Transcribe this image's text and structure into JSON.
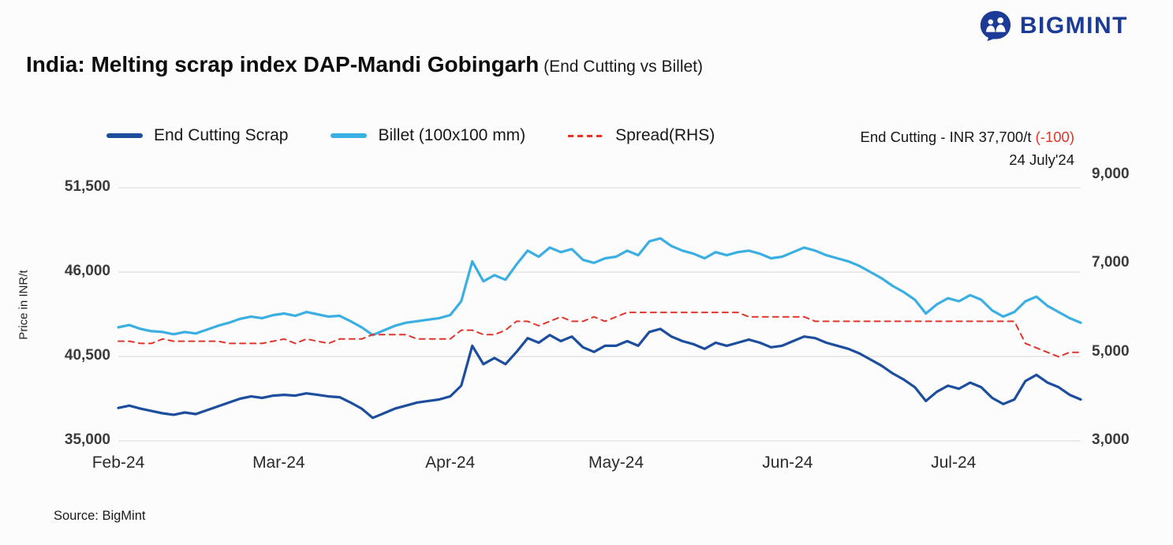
{
  "brand": {
    "name": "BIGMINT"
  },
  "title": {
    "main": "India: Melting scrap index DAP-Mandi Gobingarh",
    "suffix": " (End Cutting vs Billet)"
  },
  "annotation": {
    "prefix": "End Cutting - INR 37,700/t ",
    "change": "(-100)",
    "date": "24 July'24"
  },
  "source": "Source: BigMint",
  "colors": {
    "brand_navy": "#1b3b97",
    "end_cutting": "#1d4e9e",
    "billet": "#3bafe2",
    "spread_red": "#e0352b",
    "gridline": "#d9d9d9"
  },
  "chart_data": {
    "type": "line",
    "title": "India: Melting scrap index DAP-Mandi Gobingarh (End Cutting vs Billet)",
    "ylabel_left": "Price in INR/t",
    "legend_position": "top",
    "grid": "horizontal",
    "left_axis": {
      "min": 35000,
      "max": 51500,
      "tick_values": [
        51500,
        46000,
        40500,
        35000
      ],
      "tick_labels": [
        "51,500",
        "46,000",
        "40,500",
        "35,000"
      ]
    },
    "right_axis": {
      "min": 3000,
      "max": 9000,
      "tick_values": [
        9000,
        7000,
        5000,
        3000
      ],
      "tick_labels": [
        "9,000",
        "7,000",
        "5,000",
        "3,000"
      ]
    },
    "x_ticks": {
      "labels": [
        "Feb-24",
        "Mar-24",
        "Apr-24",
        "May-24",
        "Jun-24",
        "Jul-24"
      ],
      "day_positions": [
        0,
        29,
        60,
        90,
        121,
        151
      ],
      "total_days": 174
    },
    "sample_interval_days": 2,
    "series": [
      {
        "name": "End Cutting Scrap",
        "color": "#1d4e9e",
        "axis": "left",
        "style": "solid",
        "values": [
          37150,
          37300,
          37100,
          36950,
          36800,
          36700,
          36850,
          36750,
          37000,
          37250,
          37500,
          37750,
          37900,
          37800,
          37950,
          38000,
          37950,
          38100,
          38000,
          37900,
          37850,
          37500,
          37100,
          36500,
          36800,
          37100,
          37300,
          37500,
          37600,
          37700,
          37900,
          38600,
          41200,
          40000,
          40400,
          40000,
          40800,
          41700,
          41400,
          41900,
          41500,
          41800,
          41100,
          40800,
          41200,
          41200,
          41500,
          41200,
          42100,
          42300,
          41800,
          41500,
          41300,
          41000,
          41400,
          41200,
          41400,
          41600,
          41400,
          41100,
          41200,
          41500,
          41800,
          41700,
          41400,
          41200,
          41000,
          40700,
          40300,
          39900,
          39400,
          39000,
          38500,
          37600,
          38200,
          38600,
          38400,
          38800,
          38500,
          37800,
          37400,
          37700,
          38900,
          39300,
          38800,
          38500,
          38000,
          37700
        ]
      },
      {
        "name": "Billet (100x100 mm)",
        "color": "#3bafe2",
        "axis": "left",
        "style": "solid",
        "values": [
          42400,
          42550,
          42300,
          42150,
          42100,
          41950,
          42100,
          42000,
          42250,
          42500,
          42700,
          42950,
          43100,
          43000,
          43200,
          43300,
          43150,
          43400,
          43250,
          43100,
          43150,
          42800,
          42400,
          41900,
          42200,
          42500,
          42700,
          42800,
          42900,
          43000,
          43200,
          44100,
          46700,
          45400,
          45800,
          45500,
          46500,
          47400,
          47000,
          47600,
          47300,
          47500,
          46800,
          46600,
          46900,
          47000,
          47400,
          47100,
          48000,
          48200,
          47700,
          47400,
          47200,
          46900,
          47300,
          47100,
          47300,
          47400,
          47200,
          46900,
          47000,
          47300,
          47600,
          47400,
          47100,
          46900,
          46700,
          46400,
          46000,
          45600,
          45100,
          44700,
          44200,
          43300,
          43900,
          44300,
          44100,
          44500,
          44200,
          43500,
          43100,
          43400,
          44100,
          44400,
          43800,
          43400,
          43000,
          42700
        ]
      },
      {
        "name": "Spread(RHS)",
        "color": "#e0352b",
        "axis": "right",
        "style": "dashed",
        "values": [
          5250,
          5250,
          5200,
          5200,
          5300,
          5250,
          5250,
          5250,
          5250,
          5250,
          5200,
          5200,
          5200,
          5200,
          5250,
          5300,
          5200,
          5300,
          5250,
          5200,
          5300,
          5300,
          5300,
          5400,
          5400,
          5400,
          5400,
          5300,
          5300,
          5300,
          5300,
          5500,
          5500,
          5400,
          5400,
          5500,
          5700,
          5700,
          5600,
          5700,
          5800,
          5700,
          5700,
          5800,
          5700,
          5800,
          5900,
          5900,
          5900,
          5900,
          5900,
          5900,
          5900,
          5900,
          5900,
          5900,
          5900,
          5800,
          5800,
          5800,
          5800,
          5800,
          5800,
          5700,
          5700,
          5700,
          5700,
          5700,
          5700,
          5700,
          5700,
          5700,
          5700,
          5700,
          5700,
          5700,
          5700,
          5700,
          5700,
          5700,
          5700,
          5700,
          5200,
          5100,
          5000,
          4900,
          5000,
          5000
        ]
      }
    ]
  }
}
